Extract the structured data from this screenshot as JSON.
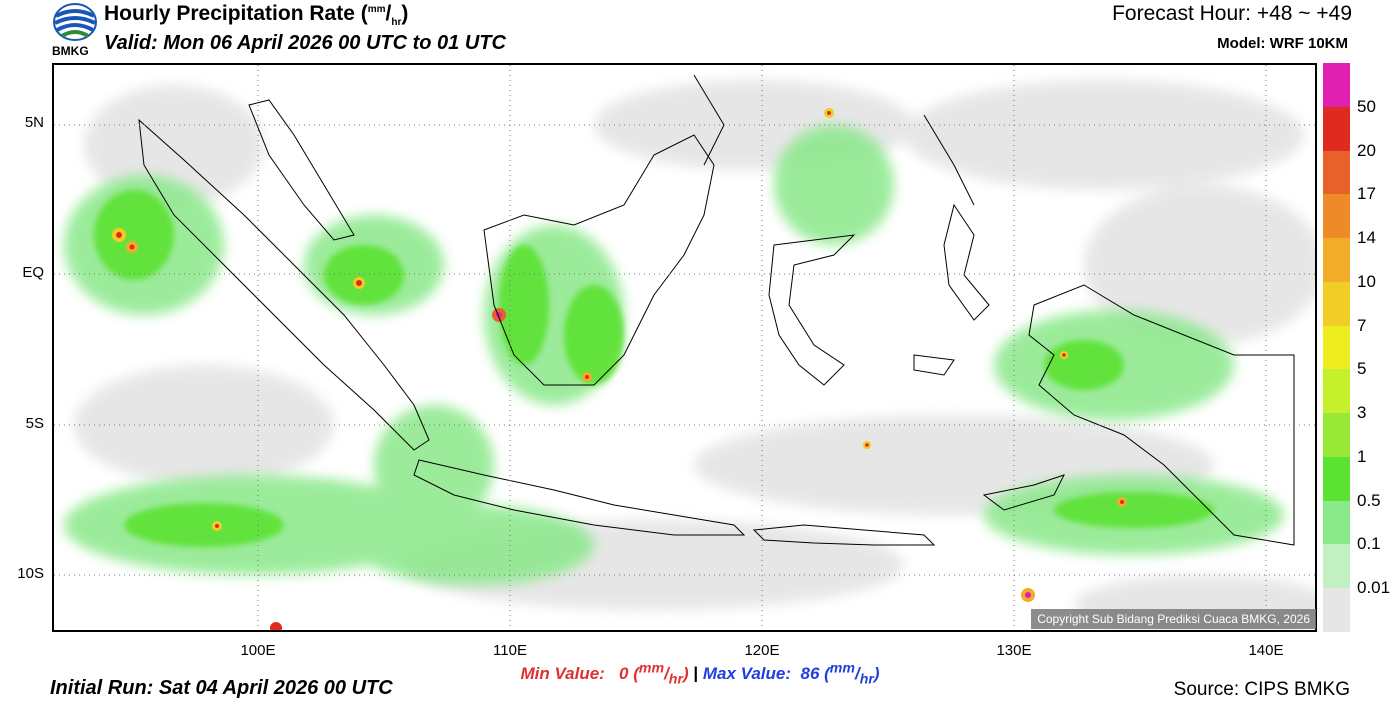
{
  "header": {
    "logo_text": "BMKG",
    "title_main": "Hourly Precipitation Rate (",
    "title_sup": "mm",
    "title_slash": "/",
    "title_sub": "hr",
    "title_close": ")",
    "valid": "Valid: Mon 06 April 2026 00 UTC to 01 UTC",
    "forecast_hour": "Forecast Hour: +48 ~ +49",
    "model": "Model: WRF 10KM"
  },
  "map": {
    "lat_labels": [
      "5N",
      "EQ",
      "5S",
      "10S"
    ],
    "lon_labels": [
      "100E",
      "110E",
      "120E",
      "130E",
      "140E"
    ],
    "copyright": "Copyright Sub Bidang Prediksi Cuaca BMKG, 2026"
  },
  "stats": {
    "min_prefix": "Min Value:",
    "min_value": "0",
    "max_prefix": "Max Value:",
    "max_value": "86",
    "unit_sup": "mm",
    "unit_slash": "/",
    "unit_sub": "hr",
    "separator": "|"
  },
  "footer": {
    "initial_run": "Initial Run: Sat 04 April 2026 00 UTC",
    "source": "Source: CIPS BMKG"
  },
  "colorbar": {
    "labels": [
      "50",
      "20",
      "17",
      "14",
      "10",
      "7",
      "5",
      "3",
      "1",
      "0.5",
      "0.1",
      "0.01"
    ],
    "colors": [
      "#e020b0",
      "#e02a1f",
      "#e8602a",
      "#ef8a28",
      "#f1ac28",
      "#f1cd26",
      "#eded20",
      "#c6f02a",
      "#98e838",
      "#5ce230",
      "#8aea8a",
      "#c2f0c2",
      "#e6e6e6"
    ]
  }
}
